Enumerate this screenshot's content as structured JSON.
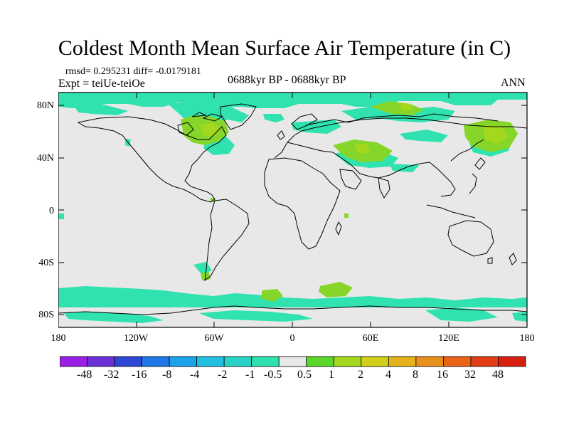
{
  "title": "Coldest Month Mean Surface Air Temperature (in C)",
  "stats": "rmsd= 0.295231  diff= -0.0179181",
  "expt": "Expt = teiUe-teiOe",
  "period": "0688kyr BP - 0688kyr BP",
  "season": "ANN",
  "lat_labels": [
    "80N",
    "40N",
    "0",
    "40S",
    "80S"
  ],
  "lon_labels": [
    "180",
    "120W",
    "60W",
    "0",
    "60E",
    "120E",
    "180"
  ],
  "colorbar": {
    "labels": [
      "-48",
      "-32",
      "-16",
      "-8",
      "-4",
      "-2",
      "-1",
      "-0.5",
      "0.5",
      "1",
      "2",
      "4",
      "8",
      "16",
      "32",
      "48"
    ],
    "colors": [
      "#9a1fe4",
      "#6a30d8",
      "#2f46d6",
      "#1f78e6",
      "#1aa2ea",
      "#22bfe0",
      "#2ad2c6",
      "#30e2b0",
      "#e8e8e8",
      "#5cd62a",
      "#a4d81e",
      "#d0d018",
      "#e3b21c",
      "#e8901c",
      "#ea6418",
      "#e23d14",
      "#d81e0e"
    ]
  },
  "colors": {
    "background": "#e8e8e8",
    "cool_anomaly": "#30e2b0",
    "warm_weak": "#86d62a",
    "warm_medium": "#a4d81e"
  }
}
